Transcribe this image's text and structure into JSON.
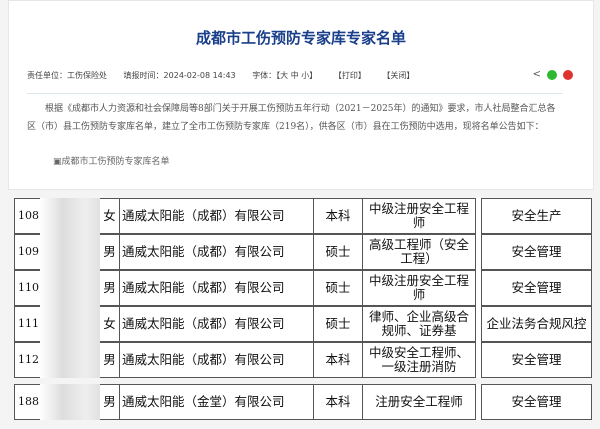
{
  "header": {
    "title": "成都市工伤预防专家库专家名单",
    "unit": "责任单位：工伤保险处",
    "time": "填报时间：2024-02-08 14:43",
    "font": "字体：【大 中 小】",
    "print": "【打印】",
    "close": "【关闭】"
  },
  "colors": {
    "title": "#1a3f8a",
    "wechat": "#2fb82f",
    "weibo": "#e0332f"
  },
  "body": {
    "paragraph": "根据《成都市人力资源和社会保障局等8部门关于开展工伤预防五年行动（2021－2025年）的通知》要求，市人社局整合汇总各区（市）县工伤预防专家库名单，建立了全市工伤预防专家库（219名），供各区（市）县在工伤预防中选用，现将名单公告如下：",
    "attachment": "成都市工伤预防专家库名单"
  },
  "rows": [
    {
      "num": "108",
      "gender": "女",
      "company": "通威太阳能（成都）有限公司",
      "edu": "本科",
      "title": "中级注册安全工程师",
      "field": "安全生产"
    },
    {
      "num": "109",
      "gender": "男",
      "company": "通威太阳能（成都）有限公司",
      "edu": "硕士",
      "title": "高级工程师（安全工程）",
      "field": "安全管理"
    },
    {
      "num": "110",
      "gender": "男",
      "company": "通威太阳能（成都）有限公司",
      "edu": "硕士",
      "title": "中级注册安全工程师",
      "field": "安全管理"
    },
    {
      "num": "111",
      "gender": "女",
      "company": "通威太阳能（成都）有限公司",
      "edu": "硕士",
      "title": "律师、企业高级合规师、证券基",
      "field": "企业法务合规风控"
    },
    {
      "num": "112",
      "gender": "男",
      "company": "通威太阳能（成都）有限公司",
      "edu": "本科",
      "title": "中级安全工程师、一级注册消防",
      "field": "安全管理"
    },
    {
      "num": "188",
      "gender": "男",
      "company": "通威太阳能（金堂）有限公司",
      "edu": "本科",
      "title": "注册安全工程师",
      "field": "安全管理"
    }
  ]
}
